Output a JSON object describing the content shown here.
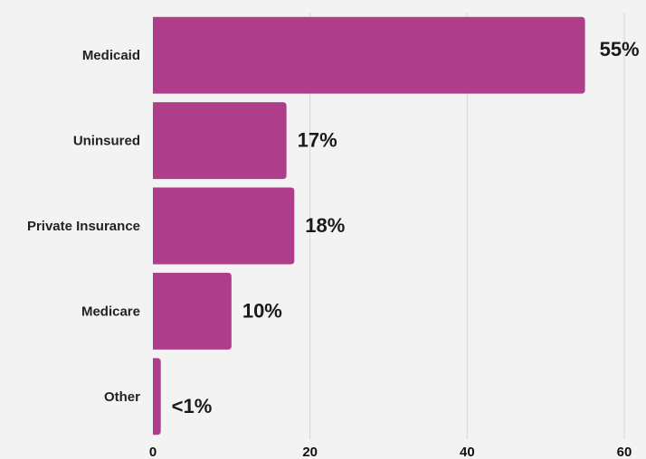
{
  "chart_data": {
    "type": "bar",
    "orientation": "horizontal",
    "categories": [
      "Medicaid",
      "Uninsured",
      "Private Insurance",
      "Medicare",
      "Other"
    ],
    "values": [
      55,
      17,
      18,
      10,
      1
    ],
    "value_labels": [
      "55%",
      "17%",
      "18%",
      "10%",
      "<1%"
    ],
    "xlim": [
      0,
      60
    ],
    "x_ticks": [
      0,
      20,
      40,
      60
    ],
    "x_tick_labels": [
      "0",
      "20",
      "40",
      "60"
    ],
    "grid": "vertical",
    "bar_color": "#ae3d8a",
    "grid_color": "#d6d6d6"
  }
}
